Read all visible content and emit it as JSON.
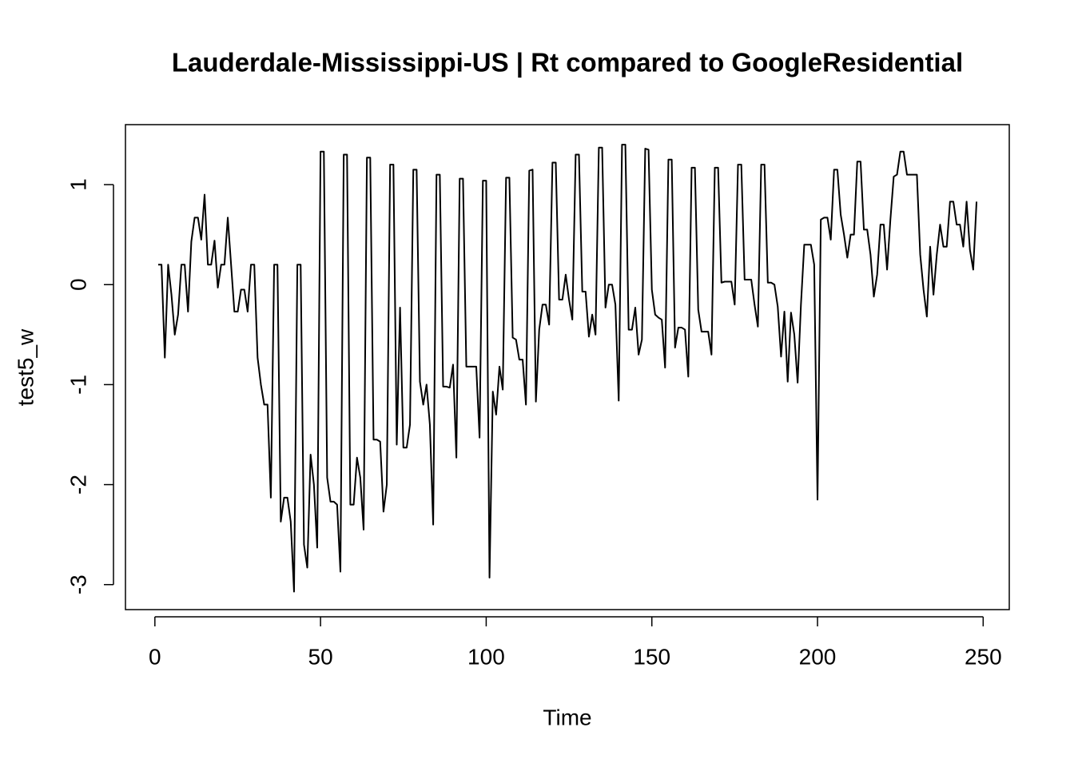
{
  "chart_data": {
    "type": "line",
    "title": "Lauderdale-Mississippi-US | Rt compared to GoogleResidential",
    "x_label": "Time",
    "y_label": "test5_w",
    "color": "#000000",
    "xlim": [
      -8.88,
      257.88
    ],
    "ylim": [
      -3.25,
      1.6
    ],
    "xticks": [
      0,
      50,
      100,
      150,
      200,
      250
    ],
    "yticks": [
      -3,
      -2,
      -1,
      0,
      1
    ],
    "x": [
      1,
      2,
      3,
      4,
      5,
      6,
      7,
      8,
      9,
      10,
      11,
      12,
      13,
      14,
      15,
      16,
      17,
      18,
      19,
      20,
      21,
      22,
      23,
      24,
      25,
      26,
      27,
      28,
      29,
      30,
      31,
      32,
      33,
      34,
      35,
      36,
      37,
      38,
      39,
      40,
      41,
      42,
      43,
      44,
      45,
      46,
      47,
      48,
      49,
      50,
      51,
      52,
      53,
      54,
      55,
      56,
      57,
      58,
      59,
      60,
      61,
      62,
      63,
      64,
      65,
      66,
      67,
      68,
      69,
      70,
      71,
      72,
      73,
      74,
      75,
      76,
      77,
      78,
      79,
      80,
      81,
      82,
      83,
      84,
      85,
      86,
      87,
      88,
      89,
      90,
      91,
      92,
      93,
      94,
      95,
      96,
      97,
      98,
      99,
      100,
      101,
      102,
      103,
      104,
      105,
      106,
      107,
      108,
      109,
      110,
      111,
      112,
      113,
      114,
      115,
      116,
      117,
      118,
      119,
      120,
      121,
      122,
      123,
      124,
      125,
      126,
      127,
      128,
      129,
      130,
      131,
      132,
      133,
      134,
      135,
      136,
      137,
      138,
      139,
      140,
      141,
      142,
      143,
      144,
      145,
      146,
      147,
      148,
      149,
      150,
      151,
      152,
      153,
      154,
      155,
      156,
      157,
      158,
      159,
      160,
      161,
      162,
      163,
      164,
      165,
      166,
      167,
      168,
      169,
      170,
      171,
      172,
      173,
      174,
      175,
      176,
      177,
      178,
      179,
      180,
      181,
      182,
      183,
      184,
      185,
      186,
      187,
      188,
      189,
      190,
      191,
      192,
      193,
      194,
      195,
      196,
      197,
      198,
      199,
      200,
      201,
      202,
      203,
      204,
      205,
      206,
      207,
      208,
      209,
      210,
      211,
      212,
      213,
      214,
      215,
      216,
      217,
      218,
      219,
      220,
      221,
      222,
      223,
      224,
      225,
      226,
      227,
      228,
      229,
      230,
      231,
      232,
      233,
      234,
      235,
      236,
      237,
      238,
      239,
      240,
      241,
      242,
      243,
      244,
      245,
      246,
      247,
      248
    ],
    "values": [
      0.2,
      0.2,
      -0.73,
      0.2,
      -0.1,
      -0.5,
      -0.3,
      0.2,
      0.2,
      -0.27,
      0.43,
      0.67,
      0.67,
      0.45,
      0.9,
      0.2,
      0.2,
      0.44,
      -0.03,
      0.2,
      0.2,
      0.67,
      0.2,
      -0.27,
      -0.27,
      -0.05,
      -0.05,
      -0.27,
      0.2,
      0.2,
      -0.73,
      -1.0,
      -1.2,
      -1.2,
      -2.13,
      0.2,
      0.2,
      -2.37,
      -2.13,
      -2.13,
      -2.37,
      -3.07,
      0.2,
      0.2,
      -2.6,
      -2.83,
      -1.7,
      -2.0,
      -2.63,
      1.33,
      1.33,
      -1.93,
      -2.17,
      -2.17,
      -2.2,
      -2.87,
      1.3,
      1.3,
      -2.2,
      -2.2,
      -1.73,
      -1.93,
      -2.45,
      1.27,
      1.27,
      -1.55,
      -1.55,
      -1.57,
      -2.27,
      -2.0,
      1.2,
      1.2,
      -1.6,
      -0.23,
      -1.63,
      -1.63,
      -1.4,
      1.15,
      1.15,
      -0.97,
      -1.2,
      -1.0,
      -1.4,
      -2.4,
      1.1,
      1.1,
      -1.02,
      -1.02,
      -1.03,
      -0.8,
      -1.73,
      1.06,
      1.06,
      -0.82,
      -0.82,
      -0.82,
      -0.82,
      -1.53,
      1.04,
      1.04,
      -2.93,
      -1.07,
      -1.3,
      -0.82,
      -1.05,
      1.07,
      1.07,
      -0.53,
      -0.55,
      -0.75,
      -0.75,
      -1.2,
      1.14,
      1.15,
      -1.17,
      -0.45,
      -0.2,
      -0.2,
      -0.4,
      1.22,
      1.22,
      -0.15,
      -0.15,
      0.1,
      -0.15,
      -0.35,
      1.3,
      1.3,
      -0.07,
      -0.07,
      -0.52,
      -0.3,
      -0.5,
      1.37,
      1.37,
      -0.23,
      0.0,
      0.0,
      -0.2,
      -1.16,
      1.4,
      1.4,
      -0.45,
      -0.45,
      -0.23,
      -0.7,
      -0.55,
      1.36,
      1.35,
      -0.05,
      -0.3,
      -0.33,
      -0.35,
      -0.83,
      1.25,
      1.25,
      -0.63,
      -0.43,
      -0.43,
      -0.45,
      -0.92,
      1.17,
      1.17,
      -0.25,
      -0.47,
      -0.47,
      -0.47,
      -0.7,
      1.17,
      1.17,
      0.02,
      0.03,
      0.03,
      0.03,
      -0.2,
      1.2,
      1.2,
      0.05,
      0.05,
      0.05,
      -0.2,
      -0.42,
      1.2,
      1.2,
      0.02,
      0.02,
      0.0,
      -0.22,
      -0.72,
      -0.27,
      -0.97,
      -0.28,
      -0.5,
      -0.98,
      -0.2,
      0.4,
      0.4,
      0.4,
      0.2,
      -2.15,
      0.65,
      0.67,
      0.67,
      0.45,
      1.15,
      1.15,
      0.7,
      0.5,
      0.27,
      0.5,
      0.5,
      1.23,
      1.23,
      0.55,
      0.55,
      0.3,
      -0.12,
      0.1,
      0.6,
      0.6,
      0.15,
      0.65,
      1.08,
      1.1,
      1.33,
      1.33,
      1.1,
      1.1,
      1.1,
      1.1,
      0.3,
      -0.05,
      -0.32,
      0.38,
      -0.1,
      0.3,
      0.6,
      0.38,
      0.38,
      0.83,
      0.83,
      0.6,
      0.6,
      0.38,
      0.83,
      0.35,
      0.15,
      0.83
    ]
  }
}
